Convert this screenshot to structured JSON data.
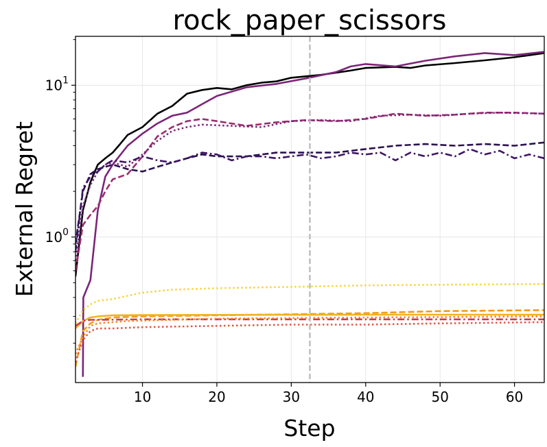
{
  "chart_data": {
    "type": "line",
    "title": "rock_paper_scissors",
    "xlabel": "Step",
    "ylabel": "External Regret",
    "xlim": [
      1,
      64
    ],
    "ylim": [
      0.11,
      21
    ],
    "yscale": "log",
    "grid": true,
    "x_ticks": [
      10,
      20,
      30,
      40,
      50,
      60
    ],
    "y_ticks": [
      {
        "value": 1,
        "base": "10",
        "exp": "0"
      },
      {
        "value": 10,
        "base": "10",
        "exp": "1"
      }
    ],
    "reference_line": {
      "x": 32.5,
      "color": "#bbbbbb",
      "style": "dashed"
    },
    "series": [
      {
        "color": "#000000",
        "style": "solid",
        "points": [
          [
            1,
            0.55
          ],
          [
            2,
            1.5
          ],
          [
            3,
            2.3
          ],
          [
            4,
            3.0
          ],
          [
            5,
            3.3
          ],
          [
            6,
            3.6
          ],
          [
            7,
            4.1
          ],
          [
            8,
            4.7
          ],
          [
            10,
            5.3
          ],
          [
            12,
            6.5
          ],
          [
            14,
            7.3
          ],
          [
            16,
            8.8
          ],
          [
            18,
            9.3
          ],
          [
            20,
            9.6
          ],
          [
            22,
            9.4
          ],
          [
            24,
            10.0
          ],
          [
            26,
            10.4
          ],
          [
            28,
            10.6
          ],
          [
            30,
            11.2
          ],
          [
            34,
            11.7
          ],
          [
            38,
            12.5
          ],
          [
            40,
            13.0
          ],
          [
            44,
            13.2
          ],
          [
            46,
            13.0
          ],
          [
            48,
            13.5
          ],
          [
            52,
            14.0
          ],
          [
            56,
            14.6
          ],
          [
            60,
            15.3
          ],
          [
            64,
            16.3
          ]
        ]
      },
      {
        "color": "#7b2478",
        "style": "solid",
        "points": [
          [
            2,
            0.12
          ],
          [
            2.05,
            0.4
          ],
          [
            3,
            0.52
          ],
          [
            4,
            1.5
          ],
          [
            5,
            2.5
          ],
          [
            6,
            3.0
          ],
          [
            8,
            4.0
          ],
          [
            10,
            4.8
          ],
          [
            12,
            5.6
          ],
          [
            14,
            6.3
          ],
          [
            16,
            6.6
          ],
          [
            18,
            7.5
          ],
          [
            20,
            8.5
          ],
          [
            24,
            9.7
          ],
          [
            28,
            10.2
          ],
          [
            32,
            11.1
          ],
          [
            36,
            12.2
          ],
          [
            38,
            13.3
          ],
          [
            40,
            13.8
          ],
          [
            44,
            13.3
          ],
          [
            48,
            14.5
          ],
          [
            52,
            15.5
          ],
          [
            56,
            16.3
          ],
          [
            60,
            15.8
          ],
          [
            64,
            16.6
          ]
        ]
      },
      {
        "color": "#9a2d6d",
        "style": "dashed",
        "points": [
          [
            1,
            0.6
          ],
          [
            2,
            1.2
          ],
          [
            3,
            1.4
          ],
          [
            4,
            1.6
          ],
          [
            5,
            2.0
          ],
          [
            6,
            2.4
          ],
          [
            8,
            2.6
          ],
          [
            10,
            3.4
          ],
          [
            12,
            4.6
          ],
          [
            14,
            5.3
          ],
          [
            16,
            5.8
          ],
          [
            18,
            6.0
          ],
          [
            20,
            5.8
          ],
          [
            24,
            5.4
          ],
          [
            28,
            5.7
          ],
          [
            32,
            5.9
          ],
          [
            36,
            5.8
          ],
          [
            40,
            6.0
          ],
          [
            44,
            6.5
          ],
          [
            48,
            6.3
          ],
          [
            52,
            6.4
          ],
          [
            56,
            6.6
          ],
          [
            60,
            6.6
          ],
          [
            64,
            6.5
          ]
        ]
      },
      {
        "color": "#7b2478",
        "style": "dotted",
        "points": [
          [
            1,
            0.7
          ],
          [
            2,
            1.6
          ],
          [
            3,
            2.2
          ],
          [
            4,
            2.7
          ],
          [
            5,
            3.0
          ],
          [
            6,
            3.1
          ],
          [
            8,
            2.9
          ],
          [
            10,
            3.5
          ],
          [
            12,
            4.3
          ],
          [
            14,
            5.0
          ],
          [
            16,
            5.3
          ],
          [
            18,
            5.5
          ],
          [
            22,
            5.4
          ],
          [
            26,
            5.3
          ],
          [
            30,
            5.8
          ],
          [
            34,
            5.9
          ],
          [
            38,
            5.8
          ],
          [
            42,
            6.3
          ],
          [
            46,
            6.4
          ],
          [
            50,
            6.3
          ],
          [
            54,
            6.5
          ],
          [
            58,
            6.6
          ],
          [
            64,
            6.5
          ]
        ]
      },
      {
        "color": "#2a1150",
        "style": "dashed",
        "points": [
          [
            1,
            0.9
          ],
          [
            2,
            2.0
          ],
          [
            3,
            2.6
          ],
          [
            4,
            2.8
          ],
          [
            5,
            2.9
          ],
          [
            6,
            3.0
          ],
          [
            8,
            2.8
          ],
          [
            10,
            2.7
          ],
          [
            12,
            2.9
          ],
          [
            14,
            3.1
          ],
          [
            16,
            3.3
          ],
          [
            18,
            3.5
          ],
          [
            20,
            3.4
          ],
          [
            24,
            3.4
          ],
          [
            28,
            3.6
          ],
          [
            32,
            3.6
          ],
          [
            36,
            3.6
          ],
          [
            40,
            3.8
          ],
          [
            44,
            4.0
          ],
          [
            48,
            4.1
          ],
          [
            52,
            4.0
          ],
          [
            56,
            4.1
          ],
          [
            60,
            4.0
          ],
          [
            64,
            4.2
          ]
        ]
      },
      {
        "color": "#3d1466",
        "style": "dashdot",
        "points": [
          [
            1,
            0.8
          ],
          [
            2,
            2.1
          ],
          [
            3,
            2.5
          ],
          [
            4,
            2.7
          ],
          [
            5,
            3.0
          ],
          [
            6,
            3.2
          ],
          [
            8,
            3.1
          ],
          [
            10,
            3.4
          ],
          [
            12,
            3.2
          ],
          [
            14,
            3.1
          ],
          [
            16,
            3.3
          ],
          [
            18,
            3.6
          ],
          [
            20,
            3.5
          ],
          [
            22,
            3.2
          ],
          [
            24,
            3.4
          ],
          [
            26,
            3.4
          ],
          [
            28,
            3.3
          ],
          [
            30,
            3.4
          ],
          [
            32,
            3.5
          ],
          [
            34,
            3.3
          ],
          [
            36,
            3.4
          ],
          [
            38,
            3.6
          ],
          [
            40,
            3.5
          ],
          [
            42,
            3.6
          ],
          [
            44,
            3.2
          ],
          [
            46,
            3.6
          ],
          [
            48,
            3.4
          ],
          [
            50,
            3.6
          ],
          [
            52,
            3.4
          ],
          [
            54,
            3.8
          ],
          [
            56,
            3.5
          ],
          [
            58,
            3.7
          ],
          [
            60,
            3.3
          ],
          [
            62,
            3.5
          ],
          [
            64,
            3.3
          ]
        ]
      },
      {
        "color": "#f5d63c",
        "style": "dotted",
        "points": [
          [
            1,
            0.27
          ],
          [
            2,
            0.33
          ],
          [
            3,
            0.36
          ],
          [
            4,
            0.38
          ],
          [
            6,
            0.39
          ],
          [
            8,
            0.41
          ],
          [
            10,
            0.43
          ],
          [
            14,
            0.45
          ],
          [
            20,
            0.46
          ],
          [
            30,
            0.47
          ],
          [
            40,
            0.48
          ],
          [
            50,
            0.485
          ],
          [
            64,
            0.49
          ]
        ]
      },
      {
        "color": "#f39a19",
        "style": "dashed",
        "points": [
          [
            1,
            0.14
          ],
          [
            2,
            0.24
          ],
          [
            3,
            0.27
          ],
          [
            4,
            0.285
          ],
          [
            6,
            0.295
          ],
          [
            10,
            0.3
          ],
          [
            20,
            0.305
          ],
          [
            30,
            0.31
          ],
          [
            40,
            0.315
          ],
          [
            50,
            0.325
          ],
          [
            64,
            0.33
          ]
        ]
      },
      {
        "color": "#f0b21e",
        "style": "solid",
        "points": [
          [
            1,
            0.25
          ],
          [
            2,
            0.28
          ],
          [
            3,
            0.295
          ],
          [
            4,
            0.3
          ],
          [
            6,
            0.305
          ],
          [
            10,
            0.306
          ],
          [
            20,
            0.307
          ],
          [
            40,
            0.308
          ],
          [
            64,
            0.308
          ]
        ]
      },
      {
        "color": "#c83c4e",
        "style": "dashdot",
        "points": [
          [
            1,
            0.26
          ],
          [
            2,
            0.28
          ],
          [
            3,
            0.285
          ],
          [
            4,
            0.285
          ],
          [
            10,
            0.287
          ],
          [
            20,
            0.287
          ],
          [
            40,
            0.287
          ],
          [
            64,
            0.287
          ]
        ]
      },
      {
        "color": "#e05a46",
        "style": "dotted",
        "points": [
          [
            1,
            0.15
          ],
          [
            2,
            0.21
          ],
          [
            3,
            0.24
          ],
          [
            4,
            0.25
          ],
          [
            6,
            0.25
          ],
          [
            10,
            0.255
          ],
          [
            20,
            0.26
          ],
          [
            30,
            0.265
          ],
          [
            40,
            0.265
          ],
          [
            50,
            0.27
          ],
          [
            64,
            0.275
          ]
        ]
      },
      {
        "color": "#f28b22",
        "style": "dotted",
        "points": [
          [
            1,
            0.17
          ],
          [
            2,
            0.22
          ],
          [
            3,
            0.26
          ],
          [
            4,
            0.27
          ],
          [
            8,
            0.28
          ],
          [
            20,
            0.29
          ],
          [
            40,
            0.295
          ],
          [
            64,
            0.3
          ]
        ]
      }
    ]
  }
}
